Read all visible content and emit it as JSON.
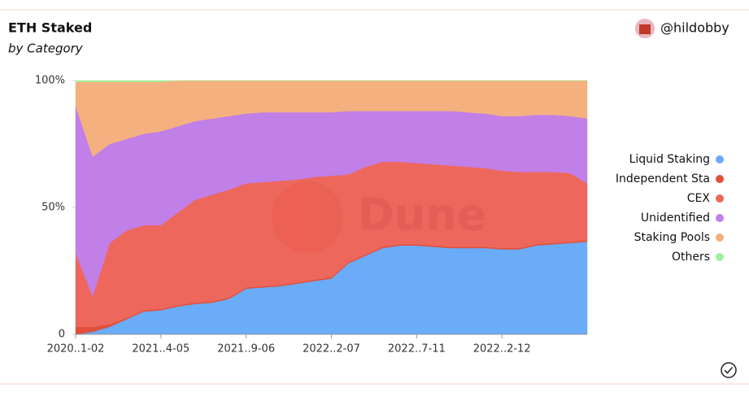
{
  "header": {
    "title": "ETH Staked",
    "subtitle": "by Category",
    "author": "@hildobby"
  },
  "chart_data": {
    "type": "stacked_area",
    "watermark": "Dune",
    "categories": [
      "2020..1-02",
      null,
      null,
      null,
      null,
      "2021..4-05",
      null,
      null,
      null,
      null,
      "2021..9-06",
      null,
      null,
      null,
      null,
      "2022..2-07",
      null,
      null,
      null,
      null,
      "2022..7-11",
      null,
      null,
      null,
      null,
      "2022..2-12",
      null,
      null,
      null,
      null,
      null
    ],
    "series": [
      {
        "name": "Liquid Staking",
        "color": "#6aacf7",
        "values": [
          0,
          1,
          3,
          6,
          9,
          9.5,
          11,
          12,
          12.5,
          14,
          18,
          18.5,
          19,
          20,
          21,
          22,
          28,
          31,
          34,
          35,
          35,
          34.5,
          34,
          34,
          34,
          33.5,
          33.5,
          35,
          35.5,
          36,
          36.5
        ]
      },
      {
        "name": "Independent Sta",
        "color": "#e0503a",
        "values": [
          3,
          2,
          1,
          0.5,
          0.5,
          0.5,
          0.5,
          0.5,
          0.5,
          0.5,
          0.5,
          0.5,
          0.5,
          0.5,
          0.5,
          0.5,
          0.5,
          0.5,
          0.5,
          0.5,
          0.5,
          0.5,
          0.5,
          0.5,
          0.5,
          0.5,
          0.5,
          0.5,
          0.5,
          0.5,
          0.5
        ]
      },
      {
        "name": "CEX",
        "color": "#ee675c",
        "values": [
          29,
          12,
          32,
          34.5,
          33.5,
          33,
          36.5,
          40.5,
          42,
          42.5,
          41,
          41,
          41,
          40.5,
          40.5,
          40,
          34.5,
          34.5,
          33.5,
          32.5,
          32,
          32,
          32,
          31.5,
          31,
          30.5,
          30,
          28.5,
          28,
          27,
          22.5
        ]
      },
      {
        "name": "Unidentified",
        "color": "#c17fe8",
        "values": [
          58,
          55,
          39,
          36,
          36,
          37,
          34,
          31,
          30,
          29,
          27.5,
          27.5,
          27,
          26.5,
          25.5,
          25,
          25,
          22,
          20,
          20,
          20.5,
          21,
          21.5,
          21.5,
          21.5,
          21.5,
          22,
          22.5,
          22.5,
          22.5,
          25.5
        ]
      },
      {
        "name": "Staking Pools",
        "color": "#f4b17f",
        "values": [
          9.5,
          29.5,
          24.5,
          22.5,
          20.5,
          19.5,
          18,
          16,
          15,
          14,
          13,
          12.5,
          12.5,
          12.5,
          12.5,
          12.5,
          12,
          12,
          12,
          12,
          12,
          12,
          12,
          12.5,
          13,
          14,
          14,
          13.5,
          13.5,
          14,
          15
        ]
      },
      {
        "name": "Others",
        "color": "#9ff09c",
        "values": [
          0.5,
          0.5,
          0.5,
          0.5,
          0.5,
          0.5,
          0,
          0,
          0,
          0,
          0,
          0,
          0,
          0,
          0,
          0,
          0,
          0,
          0,
          0,
          0,
          0,
          0,
          0,
          0,
          0,
          0,
          0,
          0,
          0,
          0
        ]
      }
    ],
    "ylim": [
      0,
      100
    ],
    "yticks": [
      0,
      {
        "value": 50,
        "label": "50%"
      },
      {
        "value": 100,
        "label": "100%"
      }
    ]
  }
}
